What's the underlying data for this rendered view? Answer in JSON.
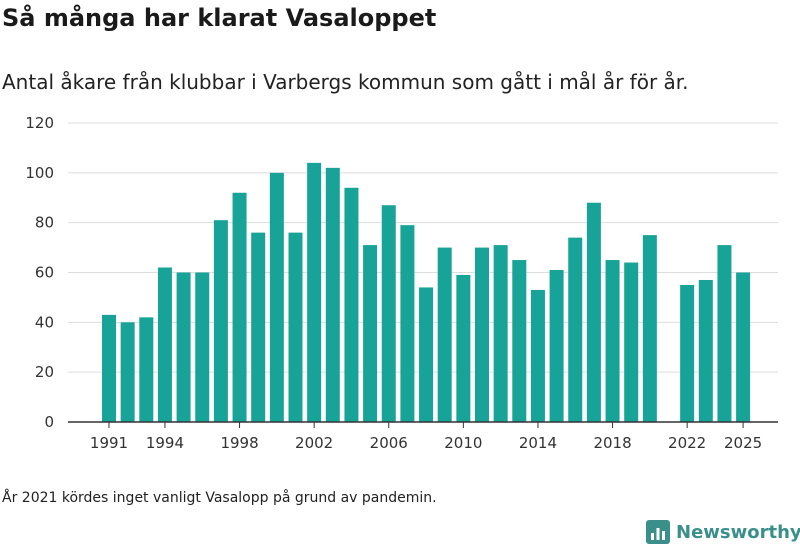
{
  "header": {
    "title": "Så många har klarat Vasaloppet",
    "subtitle": "Antal åkare från klubbar i Varbergs kommun som gått i mål år för år."
  },
  "footer": {
    "note": "År 2021 kördes inget vanligt Vasalopp på grund av pandemin.",
    "brand": "Newsworthy",
    "brand_icon": "bar-chart-logo-icon"
  },
  "colors": {
    "bar": "#17a398",
    "grid": "#dddddd",
    "axis": "#333333",
    "brand": "#3a8f8a"
  },
  "chart_data": {
    "type": "bar",
    "title": "Så många har klarat Vasaloppet",
    "xlabel": "",
    "ylabel": "",
    "ylim": [
      0,
      120
    ],
    "yticks": [
      0,
      20,
      40,
      60,
      80,
      100,
      120
    ],
    "xtick_labels": [
      "1991",
      "1994",
      "1998",
      "2002",
      "2006",
      "2010",
      "2014",
      "2018",
      "2022",
      "2025"
    ],
    "categories": [
      1991,
      1992,
      1993,
      1994,
      1995,
      1996,
      1997,
      1998,
      1999,
      2000,
      2001,
      2002,
      2003,
      2004,
      2005,
      2006,
      2007,
      2008,
      2009,
      2010,
      2011,
      2012,
      2013,
      2014,
      2015,
      2016,
      2017,
      2018,
      2019,
      2020,
      2021,
      2022,
      2023,
      2024,
      2025
    ],
    "values": [
      43,
      40,
      42,
      62,
      60,
      60,
      81,
      92,
      76,
      100,
      76,
      104,
      102,
      94,
      71,
      87,
      79,
      54,
      70,
      59,
      70,
      71,
      65,
      53,
      61,
      74,
      88,
      65,
      64,
      75,
      null,
      55,
      57,
      71,
      60
    ]
  }
}
